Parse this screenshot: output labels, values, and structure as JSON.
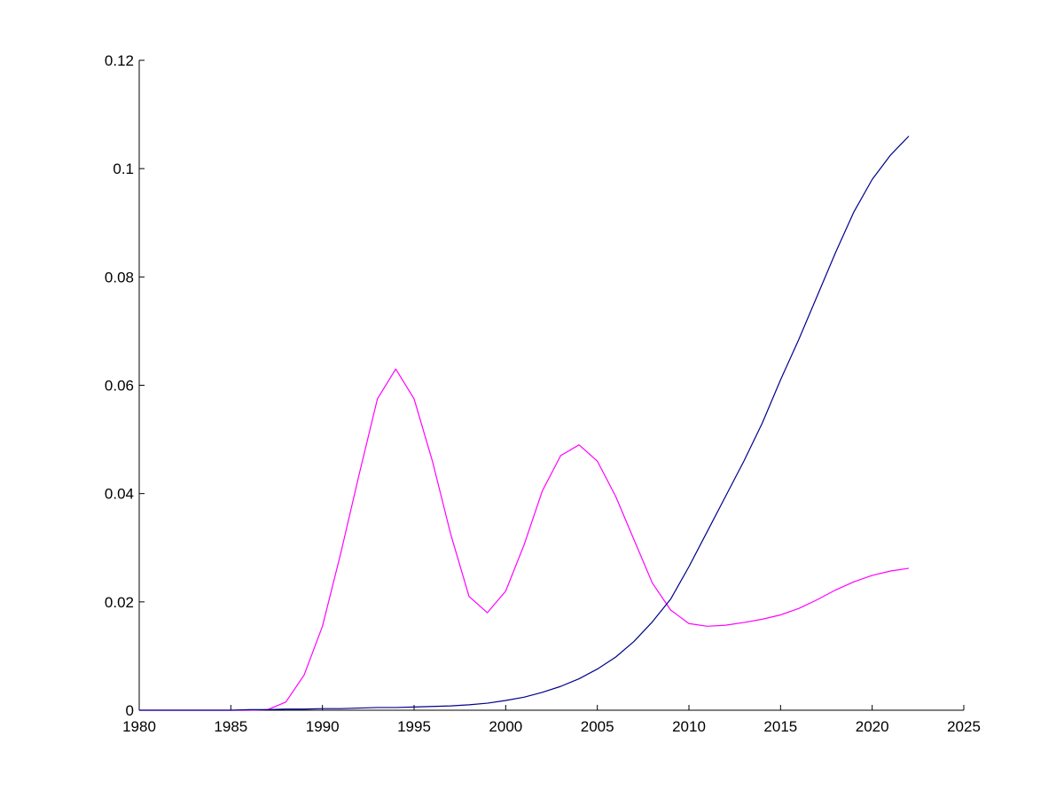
{
  "chart_data": {
    "type": "line",
    "title": "",
    "xlabel": "",
    "ylabel": "",
    "xlim": [
      1980,
      2025
    ],
    "ylim": [
      0,
      0.12
    ],
    "grid": false,
    "xticks": [
      1980,
      1985,
      1990,
      1995,
      2000,
      2005,
      2010,
      2015,
      2020,
      2025
    ],
    "xtick_labels": [
      "1980",
      "1985",
      "1990",
      "1995",
      "2000",
      "2005",
      "2010",
      "2015",
      "2020",
      "2025"
    ],
    "yticks": [
      0,
      0.02,
      0.04,
      0.06,
      0.08,
      0.1,
      0.12
    ],
    "ytick_labels": [
      "0",
      "0.02",
      "0.04",
      "0.06",
      "0.08",
      "0.1",
      "0.12"
    ],
    "series": [
      {
        "color": "#ff00ff",
        "x": [
          1980,
          1981,
          1982,
          1983,
          1984,
          1985,
          1986,
          1987,
          1988,
          1989,
          1990,
          1991,
          1992,
          1993,
          1994,
          1995,
          1996,
          1997,
          1998,
          1999,
          2000,
          2001,
          2002,
          2003,
          2004,
          2005,
          2006,
          2007,
          2008,
          2009,
          2010,
          2011,
          2012,
          2013,
          2014,
          2015,
          2016,
          2017,
          2018,
          2019,
          2020,
          2021,
          2022
        ],
        "values": [
          0,
          0,
          0,
          0,
          0,
          0,
          0,
          0.0001,
          0.0015,
          0.0065,
          0.0155,
          0.029,
          0.0435,
          0.0575,
          0.063,
          0.0575,
          0.046,
          0.0325,
          0.021,
          0.018,
          0.022,
          0.0305,
          0.0405,
          0.047,
          0.049,
          0.046,
          0.0395,
          0.0315,
          0.0235,
          0.0185,
          0.016,
          0.0155,
          0.0157,
          0.0162,
          0.0168,
          0.0176,
          0.0188,
          0.0204,
          0.0222,
          0.0237,
          0.0249,
          0.0257,
          0.0262
        ]
      },
      {
        "color": "#00008b",
        "x": [
          1980,
          1981,
          1982,
          1983,
          1984,
          1985,
          1986,
          1987,
          1988,
          1989,
          1990,
          1991,
          1992,
          1993,
          1994,
          1995,
          1996,
          1997,
          1998,
          1999,
          2000,
          2001,
          2002,
          2003,
          2004,
          2005,
          2006,
          2007,
          2008,
          2009,
          2010,
          2011,
          2012,
          2013,
          2014,
          2015,
          2016,
          2017,
          2018,
          2019,
          2020,
          2021,
          2022
        ],
        "values": [
          0,
          0,
          0,
          0,
          0,
          0,
          0.0001,
          0.0001,
          0.0002,
          0.0002,
          0.0003,
          0.0003,
          0.0004,
          0.0005,
          0.0005,
          0.0006,
          0.0007,
          0.0008,
          0.001,
          0.0013,
          0.0018,
          0.0024,
          0.0033,
          0.0044,
          0.0058,
          0.0076,
          0.0098,
          0.0127,
          0.0163,
          0.0205,
          0.0265,
          0.033,
          0.0395,
          0.046,
          0.053,
          0.061,
          0.0685,
          0.0765,
          0.0845,
          0.092,
          0.098,
          0.1025,
          0.106
        ]
      }
    ]
  }
}
